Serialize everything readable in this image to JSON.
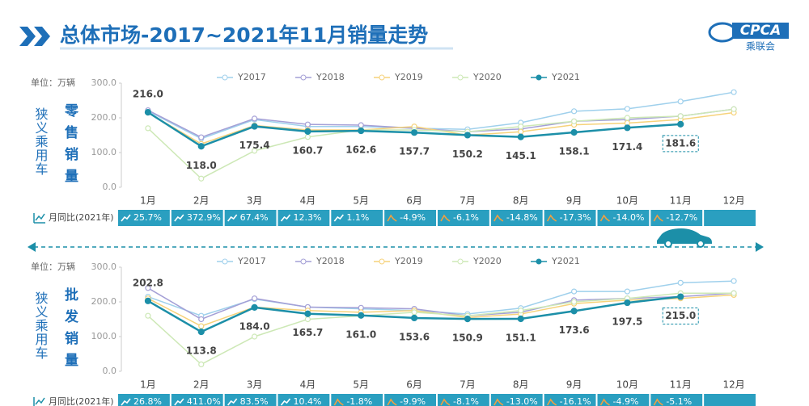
{
  "header": {
    "title": "总体市场-2017~2021年11月销量走势",
    "logo": "CPCA",
    "logo_sub": "乘联会"
  },
  "chart_data": [
    {
      "type": "line",
      "unit": "单位：万辆",
      "side_label": "狭义乘用车",
      "panel_label": "零售销量",
      "categories": [
        "1月",
        "2月",
        "3月",
        "4月",
        "5月",
        "6月",
        "7月",
        "8月",
        "9月",
        "10月",
        "11月",
        "12月"
      ],
      "ylim": [
        0,
        300
      ],
      "yticks": [
        {
          "value": 0,
          "label": "0.0"
        },
        {
          "value": 100,
          "label": "100.0"
        },
        {
          "value": 200,
          "label": "200.0"
        },
        {
          "value": 300,
          "label": "300.0"
        }
      ],
      "series": [
        {
          "name": "Y2017",
          "color": "#9fd0ec",
          "values": [
            220,
            140,
            195,
            175,
            175,
            170,
            167,
            186,
            219,
            226,
            247,
            274
          ]
        },
        {
          "name": "Y2018",
          "color": "#a49fd6",
          "values": [
            222,
            144,
            198,
            181,
            179,
            170,
            160,
            168,
            190,
            195,
            205,
            225
          ]
        },
        {
          "name": "Y2019",
          "color": "#f6d27a",
          "values": [
            215,
            125,
            178,
            165,
            165,
            175,
            150,
            160,
            180,
            185,
            195,
            215
          ]
        },
        {
          "name": "Y2020",
          "color": "#cde8b6",
          "values": [
            170,
            25,
            105,
            145,
            165,
            165,
            160,
            175,
            190,
            200,
            205,
            225
          ]
        },
        {
          "name": "Y2021",
          "color": "#1c8fa8",
          "values": [
            216.0,
            118.0,
            175.4,
            160.7,
            162.6,
            157.7,
            150.2,
            145.1,
            158.1,
            171.4,
            181.6,
            null
          ],
          "value_labels": [
            "216.0",
            "118.0",
            "175.4",
            "160.7",
            "162.6",
            "157.7",
            "150.2",
            "145.1",
            "158.1",
            "171.4",
            "181.6",
            null
          ]
        }
      ],
      "yoy_label": "月同比(2021年)",
      "yoy": [
        25.7,
        372.9,
        67.4,
        12.3,
        1.1,
        -4.9,
        -6.1,
        -14.8,
        -17.3,
        -14.0,
        -12.7,
        null
      ],
      "yoy_labels": [
        "25.7%",
        "372.9%",
        "67.4%",
        "12.3%",
        "1.1%",
        "-4.9%",
        "-6.1%",
        "-14.8%",
        "-17.3%",
        "-14.0%",
        "-12.7%",
        null
      ]
    },
    {
      "type": "line",
      "unit": "单位：万辆",
      "side_label": "狭义乘用车",
      "panel_label": "批发销量",
      "categories": [
        "1月",
        "2月",
        "3月",
        "4月",
        "5月",
        "6月",
        "7月",
        "8月",
        "9月",
        "10月",
        "11月",
        "12月"
      ],
      "ylim": [
        0,
        300
      ],
      "yticks": [
        {
          "value": 0,
          "label": "0.0"
        },
        {
          "value": 100,
          "label": "100.0"
        },
        {
          "value": 200,
          "label": "200.0"
        },
        {
          "value": 300,
          "label": "300.0"
        }
      ],
      "series": [
        {
          "name": "Y2017",
          "color": "#9fd0ec",
          "values": [
            215,
            160,
            208,
            185,
            180,
            175,
            165,
            182,
            230,
            230,
            255,
            260
          ]
        },
        {
          "name": "Y2018",
          "color": "#a49fd6",
          "values": [
            240,
            150,
            210,
            185,
            183,
            180,
            160,
            170,
            205,
            210,
            215,
            225
          ]
        },
        {
          "name": "Y2019",
          "color": "#f6d27a",
          "values": [
            210,
            130,
            185,
            175,
            170,
            175,
            155,
            165,
            195,
            205,
            210,
            220
          ]
        },
        {
          "name": "Y2020",
          "color": "#cde8b6",
          "values": [
            160,
            20,
            100,
            150,
            160,
            170,
            160,
            175,
            200,
            210,
            225,
            225
          ]
        },
        {
          "name": "Y2021",
          "color": "#1c8fa8",
          "values": [
            202.8,
            113.8,
            184.0,
            165.7,
            161.0,
            153.6,
            150.9,
            151.1,
            173.6,
            197.5,
            215.0,
            null
          ],
          "value_labels": [
            "202.8",
            "113.8",
            "184.0",
            "165.7",
            "161.0",
            "153.6",
            "150.9",
            "151.1",
            "173.6",
            "197.5",
            "215.0",
            null
          ]
        }
      ],
      "yoy_label": "月同比(2021年)",
      "yoy": [
        26.8,
        411.0,
        83.5,
        10.4,
        -1.8,
        -9.9,
        -8.1,
        -13.0,
        -16.1,
        -4.9,
        -5.1,
        null
      ],
      "yoy_labels": [
        "26.8%",
        "411.0%",
        "83.5%",
        "10.4%",
        "-1.8%",
        "-9.9%",
        "-8.1%",
        "-13.0%",
        "-16.1%",
        "-4.9%",
        "-5.1%",
        null
      ]
    }
  ]
}
